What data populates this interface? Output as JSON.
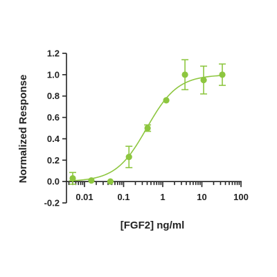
{
  "chart_data": {
    "type": "scatter",
    "title": "",
    "xlabel": "[FGF2] ng/ml",
    "ylabel": "Normalized Response",
    "x_scale": "log",
    "xlim": [
      0.003,
      100
    ],
    "ylim": [
      -0.2,
      1.2
    ],
    "x_ticks": [
      0.01,
      0.1,
      1,
      10,
      100
    ],
    "x_tick_labels": [
      "0.01",
      "0.1",
      "1",
      "10",
      "100"
    ],
    "y_ticks": [
      -0.2,
      0.0,
      0.2,
      0.4,
      0.6,
      0.8,
      1.0,
      1.2
    ],
    "y_tick_labels": [
      "-0.2",
      "0.0",
      "0.2",
      "0.4",
      "0.6",
      "0.8",
      "1.0",
      "1.2"
    ],
    "grid": false,
    "legend": "none",
    "color": "#8dc63f",
    "series": [
      {
        "points": [
          {
            "x": 0.005,
            "y": 0.03,
            "err": 0.055
          },
          {
            "x": 0.015,
            "y": 0.01,
            "err": 0.0
          },
          {
            "x": 0.046,
            "y": 0.0,
            "err": 0.0
          },
          {
            "x": 0.137,
            "y": 0.23,
            "err": 0.1
          },
          {
            "x": 0.41,
            "y": 0.5,
            "err": 0.03
          },
          {
            "x": 1.23,
            "y": 0.76,
            "err": 0.0
          },
          {
            "x": 3.7,
            "y": 1.0,
            "err": 0.14
          },
          {
            "x": 11.1,
            "y": 0.95,
            "err": 0.13
          },
          {
            "x": 33.3,
            "y": 1.0,
            "err": 0.1
          }
        ],
        "fit": {
          "model": "4PL",
          "bottom": 0.0,
          "top": 1.0,
          "ec50": 0.39,
          "hill": 1.1
        }
      }
    ]
  }
}
